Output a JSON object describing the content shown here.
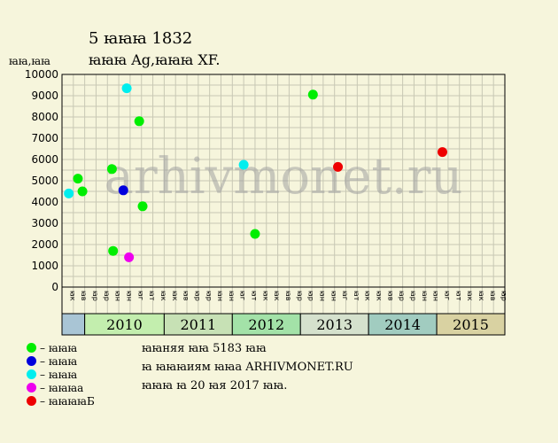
{
  "title": "5 ꙗꙗꙗ 1832",
  "subtitle": "ꙗꙗꙗ Ag,ꙗꙗꙗ XF.",
  "ylabel": "ꙗꙗ,ꙗꙗ",
  "watermark": "arhivmonet.ru",
  "notes": [
    "ꙗꙗняя ꙗꙗ 5183 ꙗꙗ",
    "ꙗ ꙗꙗꙗиям ꙗꙗа ARHIVMONET.RU",
    "ꙗꙗꙗ ꙗ 20 ꙗя 2017 ꙗꙗ."
  ],
  "legend": [
    {
      "label": "– ꙗꙗꙗ",
      "color": "#00ee00"
    },
    {
      "label": "– ꙗꙗꙗ",
      "color": "#0000dd"
    },
    {
      "label": "– ꙗꙗꙗ",
      "color": "#00eeee"
    },
    {
      "label": "– ꙗꙗꙗа",
      "color": "#ee00ee"
    },
    {
      "label": "– ꙗꙗꙗꙗБ",
      "color": "#ee0000"
    }
  ],
  "chart_data": {
    "type": "scatter",
    "ylim": [
      0,
      10000
    ],
    "yticks": [
      0,
      1000,
      2000,
      3000,
      4000,
      5000,
      6000,
      7000,
      8000,
      9000,
      10000
    ],
    "grid": true,
    "month_labels": [
      "ꙗк",
      "ꙗв",
      "ꙗр",
      "ꙗр",
      "ꙗн",
      "ꙗн",
      "ꙗг",
      "ꙗт",
      "ꙗк"
    ],
    "years": [
      {
        "label": "",
        "start": 0,
        "end": 2,
        "color": "#a9c5d5"
      },
      {
        "label": "2010",
        "start": 2,
        "end": 9,
        "color": "#c3eeae"
      },
      {
        "label": "2011",
        "start": 9,
        "end": 15,
        "color": "#c7e1b5"
      },
      {
        "label": "2012",
        "start": 15,
        "end": 21,
        "color": "#a3e2a8"
      },
      {
        "label": "2013",
        "start": 21,
        "end": 27,
        "color": "#d5e1cd"
      },
      {
        "label": "2014",
        "start": 27,
        "end": 33,
        "color": "#a1ccc0"
      },
      {
        "label": "2015",
        "start": 33,
        "end": 39,
        "color": "#d9d2a2"
      }
    ],
    "points": [
      {
        "x": 0.6,
        "y": 4400,
        "color": "#00eeee"
      },
      {
        "x": 1.4,
        "y": 5100,
        "color": "#00ee00"
      },
      {
        "x": 1.8,
        "y": 4500,
        "color": "#00ee00"
      },
      {
        "x": 4.4,
        "y": 5550,
        "color": "#00ee00"
      },
      {
        "x": 4.5,
        "y": 1700,
        "color": "#00ee00"
      },
      {
        "x": 5.4,
        "y": 4550,
        "color": "#0000dd"
      },
      {
        "x": 5.7,
        "y": 9350,
        "color": "#00eeee"
      },
      {
        "x": 5.9,
        "y": 1400,
        "color": "#ee00ee"
      },
      {
        "x": 6.8,
        "y": 7800,
        "color": "#00ee00"
      },
      {
        "x": 7.1,
        "y": 3800,
        "color": "#00ee00"
      },
      {
        "x": 16.0,
        "y": 5750,
        "color": "#00eeee"
      },
      {
        "x": 17.0,
        "y": 2500,
        "color": "#00ee00"
      },
      {
        "x": 22.1,
        "y": 9050,
        "color": "#00ee00"
      },
      {
        "x": 24.3,
        "y": 5650,
        "color": "#ee0000"
      },
      {
        "x": 33.5,
        "y": 6350,
        "color": "#ee0000"
      }
    ]
  }
}
